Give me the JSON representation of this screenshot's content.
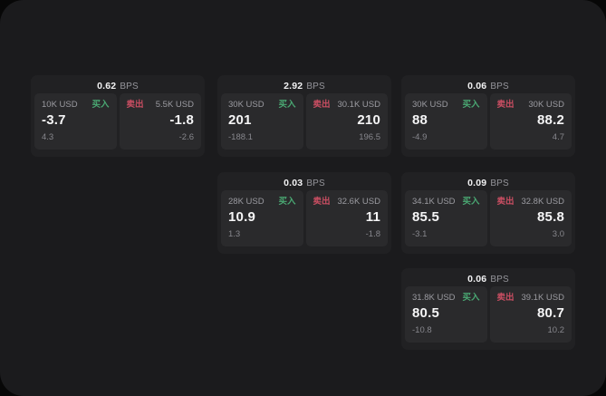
{
  "app": {
    "surface_color": "#1b1b1d",
    "outside_color": "#070707"
  },
  "colors": {
    "buy_green": "#4aa873",
    "sell_red": "#c94e62",
    "card_bg": "#212123",
    "panel_bg": "#2a2a2c",
    "text_primary": "#f5f5f6",
    "text_secondary": "#9b9ba1"
  },
  "labels": {
    "bps": "BPS",
    "buy": "买入",
    "sell": "卖出"
  },
  "cards": [
    {
      "row": 1,
      "col": 1,
      "bps": "0.62",
      "buy": {
        "size": "10K USD",
        "value": "-3.7",
        "delta": "4.3"
      },
      "sell": {
        "size": "5.5K USD",
        "value": "-1.8",
        "delta": "-2.6"
      }
    },
    {
      "row": 1,
      "col": 2,
      "bps": "2.92",
      "buy": {
        "size": "30K USD",
        "value": "201",
        "delta": "-188.1"
      },
      "sell": {
        "size": "30.1K USD",
        "value": "210",
        "delta": "196.5"
      }
    },
    {
      "row": 1,
      "col": 3,
      "bps": "0.06",
      "buy": {
        "size": "30K USD",
        "value": "88",
        "delta": "-4.9"
      },
      "sell": {
        "size": "30K USD",
        "value": "88.2",
        "delta": "4.7"
      }
    },
    {
      "row": 2,
      "col": 2,
      "bps": "0.03",
      "buy": {
        "size": "28K USD",
        "value": "10.9",
        "delta": "1.3"
      },
      "sell": {
        "size": "32.6K USD",
        "value": "11",
        "delta": "-1.8"
      }
    },
    {
      "row": 2,
      "col": 3,
      "bps": "0.09",
      "buy": {
        "size": "34.1K USD",
        "value": "85.5",
        "delta": "-3.1"
      },
      "sell": {
        "size": "32.8K USD",
        "value": "85.8",
        "delta": "3.0"
      }
    },
    {
      "row": 3,
      "col": 3,
      "bps": "0.06",
      "buy": {
        "size": "31.8K USD",
        "value": "80.5",
        "delta": "-10.8"
      },
      "sell": {
        "size": "39.1K USD",
        "value": "80.7",
        "delta": "10.2"
      }
    }
  ]
}
